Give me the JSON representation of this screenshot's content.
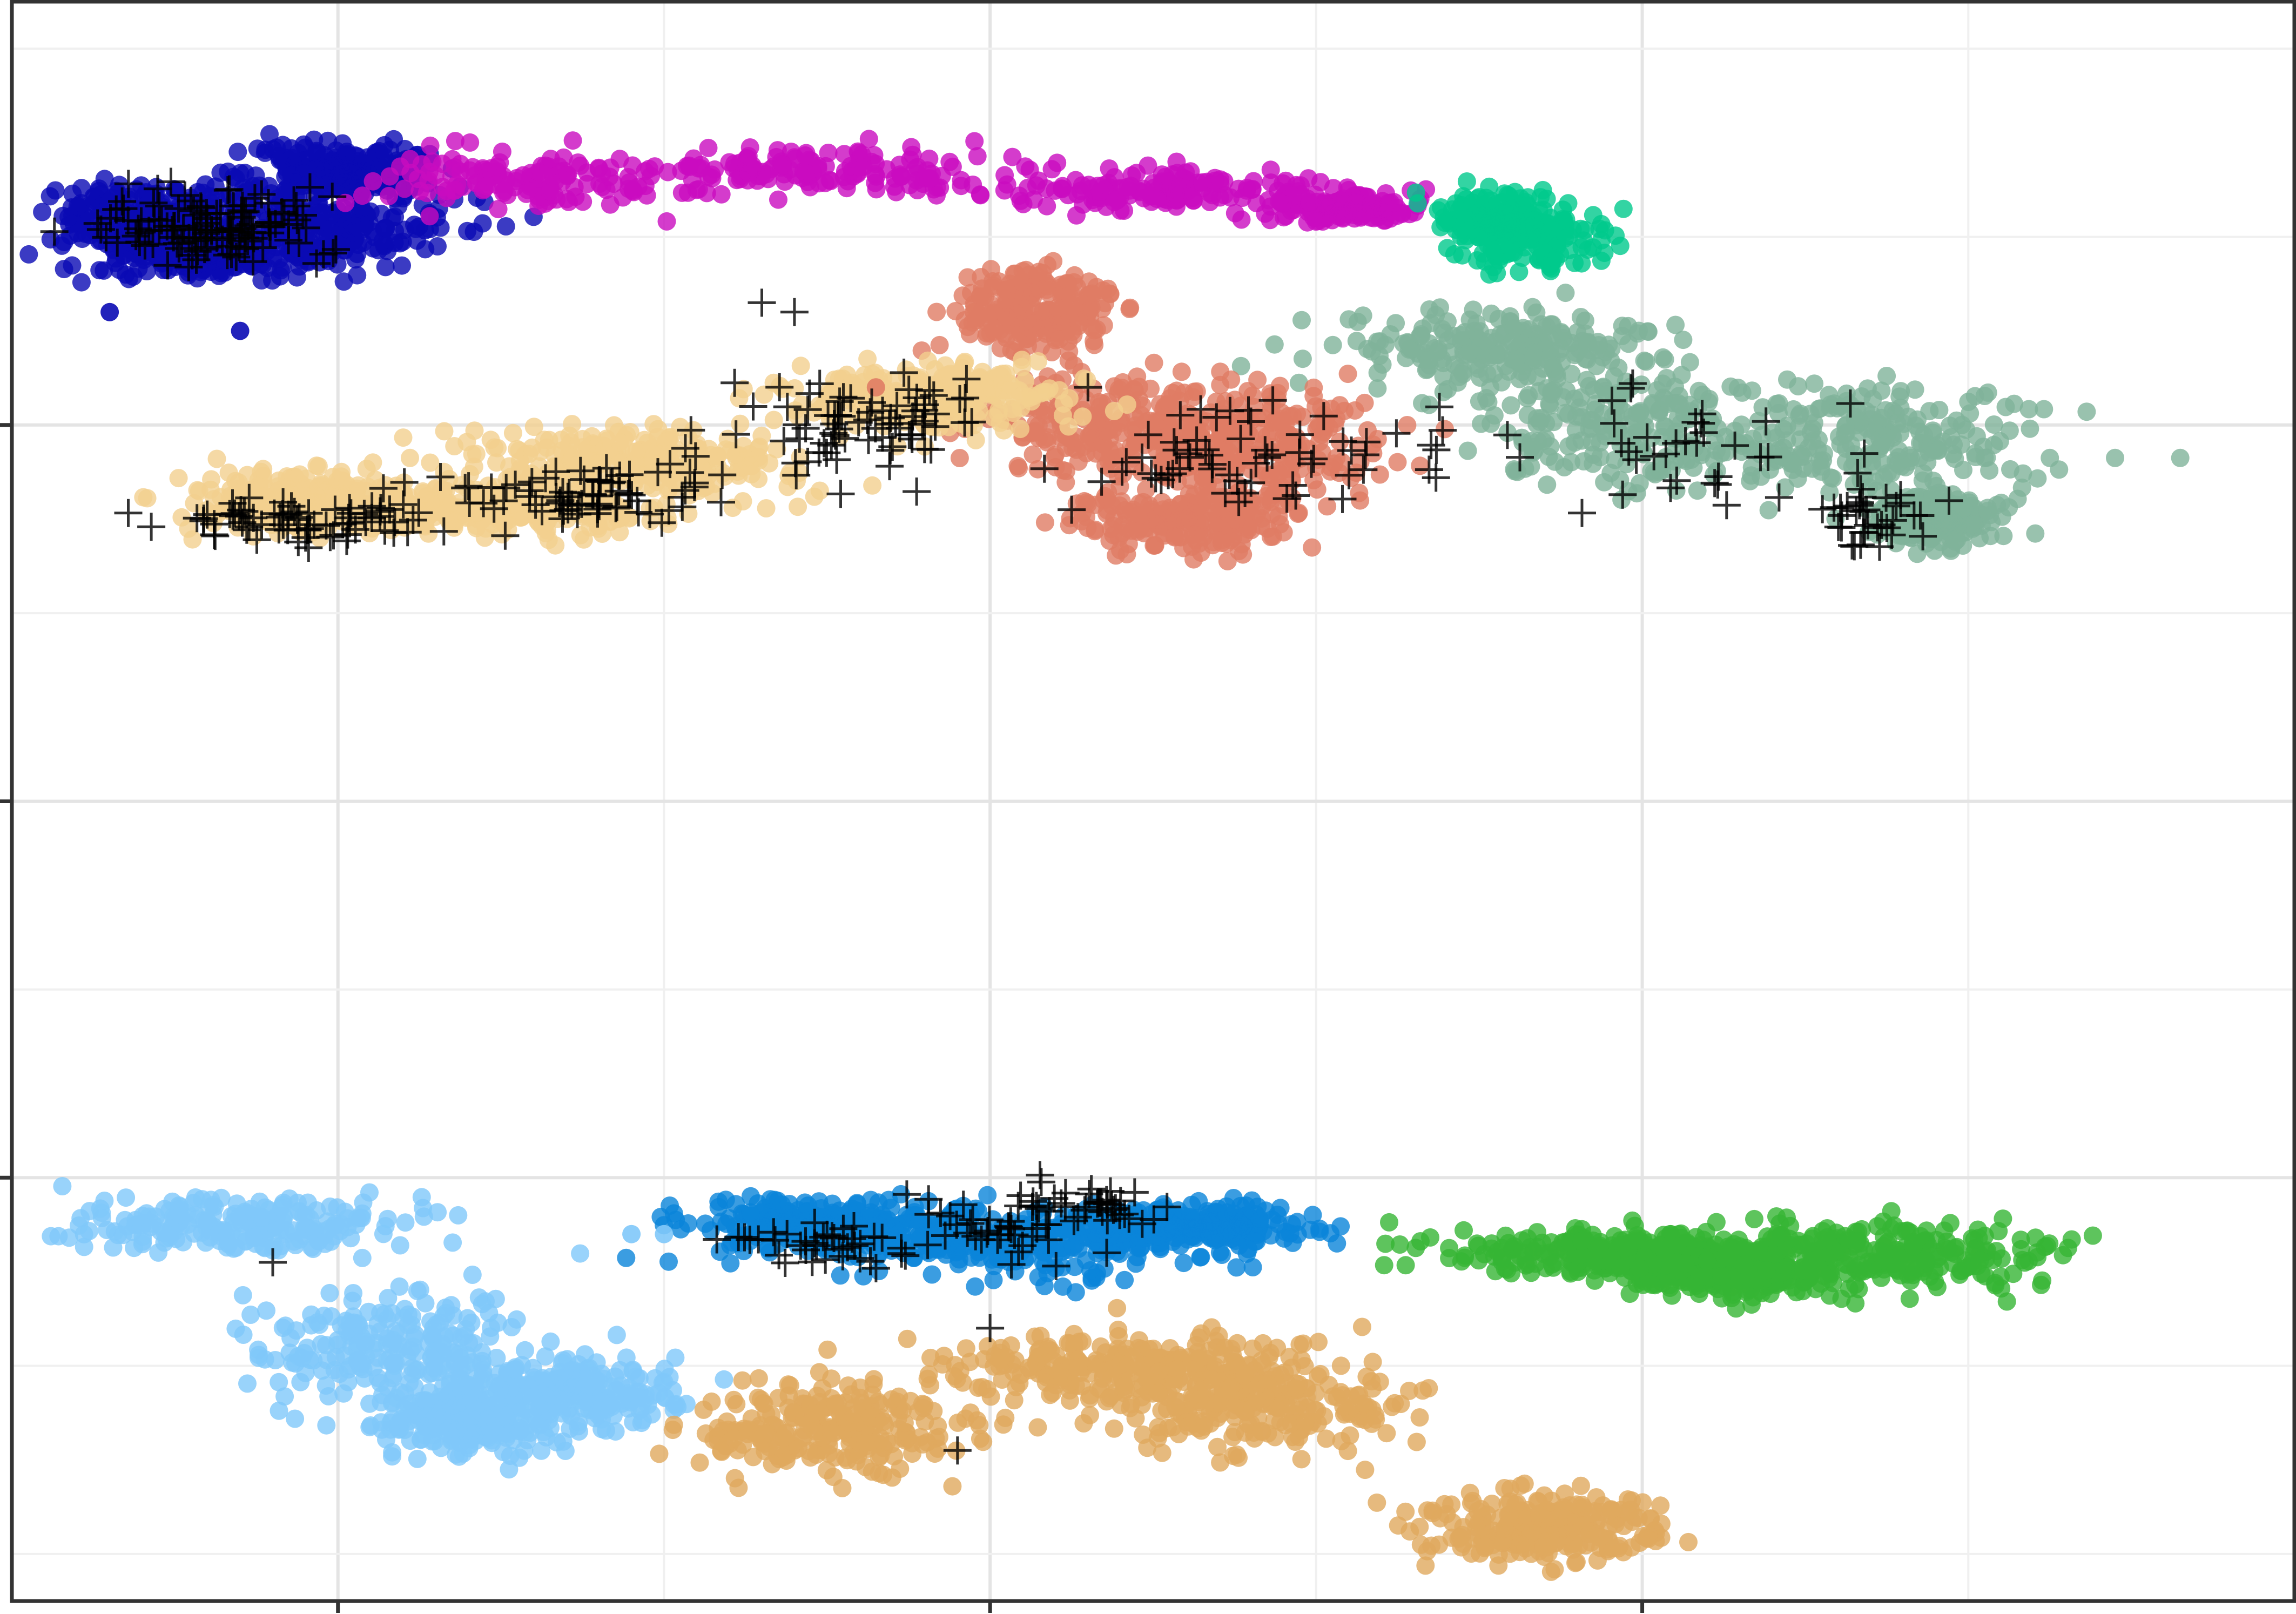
{
  "chart_data": {
    "type": "scatter",
    "title": "",
    "xlabel": "",
    "ylabel": "",
    "xlim": [
      -20,
      120
    ],
    "ylim": [
      -85,
      85
    ],
    "x_major_ticks": [
      0,
      40,
      80
    ],
    "y_major_ticks": [
      -40,
      0,
      40
    ],
    "grid": true,
    "legend": "none",
    "colors": {
      "navy": "#0a0ab4",
      "magenta": "#c90bbf",
      "teal": "#00c98c",
      "sage": "#7fb39a",
      "salmon": "#e07c64",
      "wheat": "#f3cf8e",
      "light_blue": "#80c8fa",
      "blue": "#0a85d9",
      "green": "#36b535",
      "tan": "#e0a95e",
      "marker": "#000000"
    },
    "clusters": [
      {
        "color": "navy",
        "density": 900,
        "blobs": [
          [
            -12,
            62,
            6,
            3
          ],
          [
            -2,
            61,
            8,
            3.5
          ],
          [
            0,
            67,
            5,
            2.5
          ],
          [
            -8,
            58,
            6,
            2
          ]
        ]
      },
      {
        "color": "magenta",
        "density": 600,
        "blobs": [
          [
            12,
            66,
            8,
            2.5
          ],
          [
            30,
            67,
            9,
            2
          ],
          [
            50,
            65,
            8,
            2
          ],
          [
            62,
            63,
            4,
            1.5
          ]
        ]
      },
      {
        "color": "teal",
        "density": 300,
        "blobs": [
          [
            73,
            60,
            4,
            3
          ],
          [
            71,
            62,
            3,
            2
          ]
        ]
      },
      {
        "color": "sage",
        "density": 900,
        "blobs": [
          [
            79,
            40,
            8,
            6
          ],
          [
            72,
            48,
            8,
            3
          ],
          [
            94,
            38,
            8,
            5
          ],
          [
            98,
            30,
            3,
            2
          ]
        ]
      },
      {
        "color": "salmon",
        "density": 900,
        "blobs": [
          [
            48,
            40,
            7,
            4
          ],
          [
            56,
            38,
            7,
            5
          ],
          [
            43,
            52,
            4,
            4
          ],
          [
            52,
            30,
            6,
            3
          ]
        ]
      },
      {
        "color": "wheat",
        "density": 1100,
        "blobs": [
          [
            -2,
            32,
            6,
            2.5
          ],
          [
            18,
            36,
            9,
            3
          ],
          [
            36,
            43,
            7,
            3
          ],
          [
            10,
            31,
            8,
            2
          ]
        ]
      },
      {
        "color": "light_blue",
        "density": 900,
        "blobs": [
          [
            -6,
            -45,
            8,
            2.5
          ],
          [
            4,
            -58,
            7,
            5
          ],
          [
            14,
            -63,
            6,
            3
          ],
          [
            8,
            -66,
            5,
            3
          ]
        ]
      },
      {
        "color": "blue",
        "density": 700,
        "blobs": [
          [
            30,
            -45,
            7,
            2.5
          ],
          [
            42,
            -47,
            9,
            3
          ],
          [
            52,
            -45,
            6,
            2
          ]
        ]
      },
      {
        "color": "green",
        "density": 800,
        "blobs": [
          [
            78,
            -48,
            8,
            2
          ],
          [
            95,
            -48,
            10,
            3
          ],
          [
            85,
            -50,
            6,
            2
          ]
        ]
      },
      {
        "color": "tan",
        "density": 1000,
        "blobs": [
          [
            30,
            -67,
            7,
            4
          ],
          [
            48,
            -60,
            10,
            3
          ],
          [
            56,
            -64,
            8,
            4
          ],
          [
            74,
            -77,
            6,
            3
          ]
        ]
      }
    ],
    "marker_groups": [
      {
        "density": 120,
        "blobs": [
          [
            -8,
            61,
            6,
            3
          ]
        ]
      },
      {
        "density": 220,
        "blobs": [
          [
            -2,
            30,
            7,
            2
          ],
          [
            16,
            33,
            8,
            3
          ],
          [
            32,
            40,
            6,
            4
          ]
        ]
      },
      {
        "density": 60,
        "blobs": [
          [
            56,
            37,
            8,
            5
          ]
        ]
      },
      {
        "density": 70,
        "blobs": [
          [
            83,
            38,
            10,
            6
          ],
          [
            94,
            30,
            3,
            3
          ]
        ]
      },
      {
        "density": 110,
        "blobs": [
          [
            30,
            -47,
            7,
            2
          ],
          [
            40,
            -46,
            6,
            3
          ],
          [
            46,
            -43,
            4,
            2
          ]
        ]
      }
    ],
    "trail_points": [
      {
        "color": "sage",
        "points": [
          [
            97,
            36.5
          ],
          [
            101,
            36.5
          ],
          [
            105,
            36.5
          ],
          [
            109,
            36.5
          ],
          [
            113,
            36.5
          ]
        ]
      }
    ],
    "outlier_points": [
      {
        "color": "navy",
        "points": [
          [
            -14,
            52
          ],
          [
            -6,
            50
          ]
        ]
      },
      {
        "color": "blue",
        "points": [
          [
            26,
            -46
          ]
        ]
      },
      {
        "color": "light_blue",
        "points": [
          [
            20,
            -46
          ],
          [
            18,
            -46
          ]
        ]
      },
      {
        "color": "salmon",
        "points": [
          [
            33,
            44
          ],
          [
            39,
            52
          ]
        ]
      }
    ],
    "marker_outliers": [
      [
        -4,
        -49
      ],
      [
        38,
        -69
      ],
      [
        26,
        53
      ],
      [
        28,
        52
      ],
      [
        46,
        44
      ],
      [
        45,
        31
      ],
      [
        40,
        -56
      ]
    ]
  }
}
